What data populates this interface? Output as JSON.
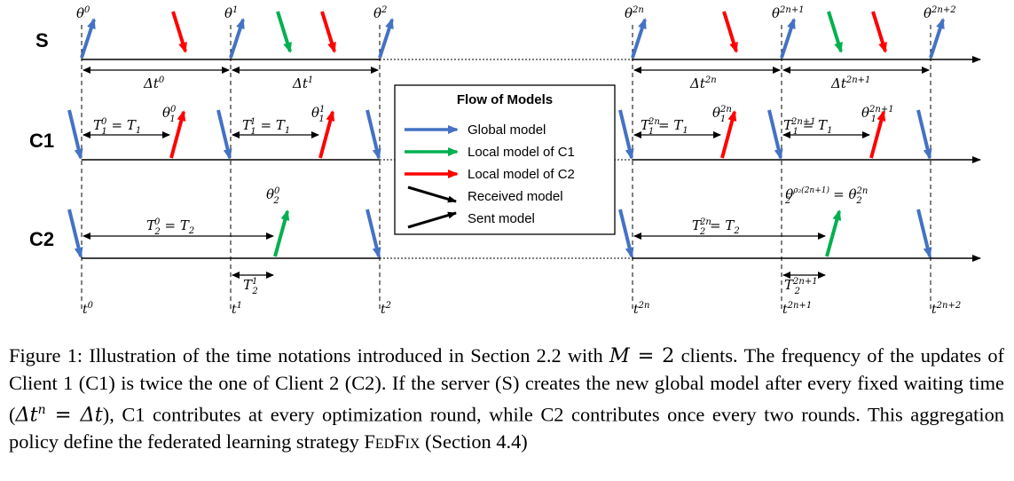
{
  "rows": {
    "server": "S",
    "client1": "C1",
    "client2": "C2"
  },
  "server_row": {
    "model_labels": [
      {
        "base": "θ",
        "sup": "0"
      },
      {
        "base": "θ",
        "sup": "1"
      },
      {
        "base": "θ",
        "sup": "2"
      },
      {
        "base": "θ",
        "sup": "2n"
      },
      {
        "base": "θ",
        "sup": "2n+1"
      },
      {
        "base": "θ",
        "sup": "2n+2"
      }
    ],
    "intervals": [
      {
        "base": "Δt",
        "sup": "0"
      },
      {
        "base": "Δt",
        "sup": "1"
      },
      {
        "base": "Δt",
        "sup": "2n"
      },
      {
        "base": "Δt",
        "sup": "2n+1"
      }
    ]
  },
  "client1_row": {
    "durations": [
      {
        "lhs": "T",
        "sub": "1",
        "sup": "0",
        "rhs": "T",
        "rhs_sub": "1"
      },
      {
        "lhs": "T",
        "sub": "1",
        "sup": "1",
        "rhs": "T",
        "rhs_sub": "1"
      },
      {
        "lhs": "T",
        "sub": "1",
        "sup": "2n",
        "rhs": "T",
        "rhs_sub": "1"
      },
      {
        "lhs": "T",
        "sub": "1",
        "sup": "2n+1",
        "rhs": "T",
        "rhs_sub": "1"
      }
    ],
    "models": [
      {
        "base": "θ",
        "sub": "1",
        "sup": "0"
      },
      {
        "base": "θ",
        "sub": "1",
        "sup": "1"
      },
      {
        "base": "θ",
        "sub": "1",
        "sup": "2n"
      },
      {
        "base": "θ",
        "sub": "1",
        "sup": "2n+1"
      }
    ]
  },
  "client2_row": {
    "durations": [
      {
        "lhs": "T",
        "sub": "2",
        "sup": "0",
        "rhs": "T",
        "rhs_sub": "2"
      },
      {
        "lhs": "T",
        "sub": "2",
        "sup": "2n",
        "rhs": "T",
        "rhs_sub": "2"
      }
    ],
    "model_a": {
      "base": "θ",
      "sub": "2",
      "sup": "0"
    },
    "model_b": {
      "base": "θ",
      "sub": "2",
      "sup": "ρ₂(2n+1)",
      "eq_base": "θ",
      "eq_sub": "2",
      "eq_sup": "2n"
    },
    "small_intervals": [
      {
        "base": "T",
        "sub": "2",
        "sup": "1"
      },
      {
        "base": "T",
        "sub": "2",
        "sup": "2n+1"
      }
    ]
  },
  "time_labels": [
    {
      "base": "t",
      "sup": "0"
    },
    {
      "base": "t",
      "sup": "1"
    },
    {
      "base": "t",
      "sup": "2"
    },
    {
      "base": "t",
      "sup": "2n"
    },
    {
      "base": "t",
      "sup": "2n+1"
    },
    {
      "base": "t",
      "sup": "2n+2"
    }
  ],
  "legend": {
    "title": "Flow of Models",
    "items": [
      {
        "label": "Global model",
        "color": "#4472c4"
      },
      {
        "label": "Local model of C1",
        "color": "#00b050"
      },
      {
        "label": "Local model of C2",
        "color": "#ff0000"
      },
      {
        "label": "Received model",
        "color": "#000000"
      },
      {
        "label": "Sent model",
        "color": "#000000"
      }
    ]
  },
  "caption": {
    "p1": "Figure 1: Illustration of the time notations introduced in Section 2.2 with ",
    "m_var": "M",
    "m_eq": " = 2",
    "p2": " clients.  The frequency of the updates of Client 1 (C1) is twice the one of Client 2 (C2). If the server (S) creates the new global model after every fixed waiting time (",
    "dt_expr": "Δt",
    "dt_sup": "n",
    "dt_eq": " = Δt",
    "p3": "), C1 contributes at every optimization round, while C2 contributes once every two rounds.  This aggregation policy define the federated learning strategy ",
    "strategy": "FedFix",
    "p4": " (Section 4.4)"
  },
  "colors": {
    "global": "#4472c4",
    "c1": "#00b050",
    "c2": "#ff0000"
  }
}
